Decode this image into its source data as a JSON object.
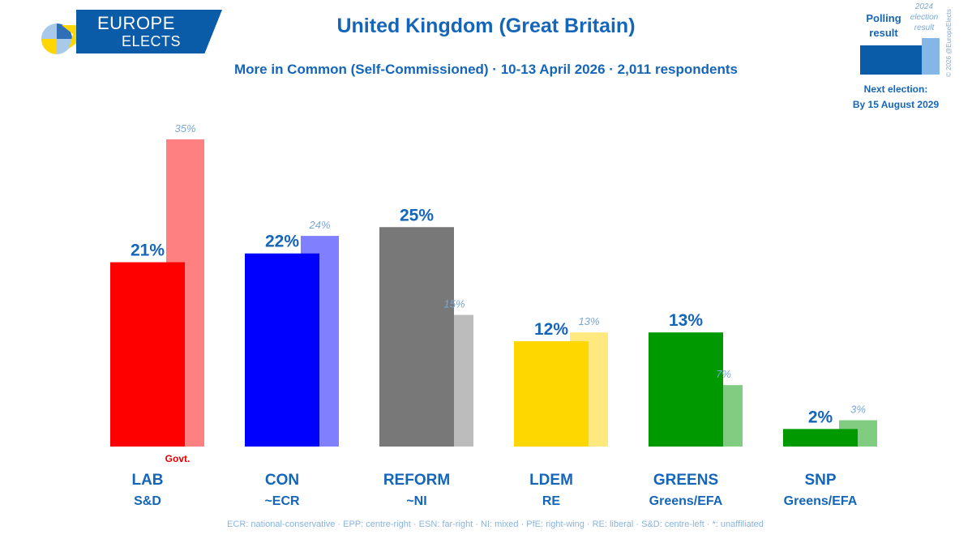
{
  "logo": {
    "line1": "EUROPE",
    "line2": "ELECTS"
  },
  "title": "United Kingdom (Great Britain)",
  "subtitle": "More in Common (Self-Commissioned) · 10-13 April 2026 · 2,011 respondents",
  "legend": {
    "polling_label": "Polling result",
    "previous_label": "2024 election result",
    "next_election_label": "Next election:",
    "next_election_date": "By 15 August 2029",
    "copyright": "© 2026 @EuropeElects"
  },
  "chart_data": {
    "type": "bar",
    "title": "United Kingdom (Great Britain)",
    "categories": [
      "LAB",
      "CON",
      "REFORM",
      "LDEM",
      "GREENS",
      "SNP"
    ],
    "groups": [
      "S&D",
      "~ECR",
      "~NI",
      "RE",
      "Greens/EFA",
      "Greens/EFA"
    ],
    "series": [
      {
        "name": "Polling result",
        "values": [
          21,
          22,
          25,
          12,
          13,
          2
        ]
      },
      {
        "name": "2024 election result",
        "values": [
          35,
          24,
          15,
          13,
          7,
          3
        ]
      }
    ],
    "value_labels": {
      "poll": [
        "21%",
        "22%",
        "25%",
        "12%",
        "13%",
        "2%"
      ],
      "previous": [
        "35%",
        "24%",
        "15%",
        "13%",
        "7%",
        "3%"
      ]
    },
    "colors": {
      "poll": [
        "#ff0000",
        "#0000ff",
        "#787878",
        "#ffd700",
        "#009900",
        "#009900"
      ],
      "previous": [
        "#ff8080",
        "#8080ff",
        "#bcbcbc",
        "#ffe97f",
        "#80cc80",
        "#80cc80"
      ]
    },
    "government": {
      "party": "LAB",
      "label": "Govt.",
      "color": "#dd0000"
    },
    "label_color": "#1565b8",
    "previous_label_color": "#7aa8d4",
    "ylim": [
      0,
      35
    ]
  },
  "footnote": "ECR: national-conservative · EPP: centre-right · ESN: far-right · NI: mixed · PfE: right-wing · RE: liberal · S&D: centre-left · *: unaffiliated"
}
